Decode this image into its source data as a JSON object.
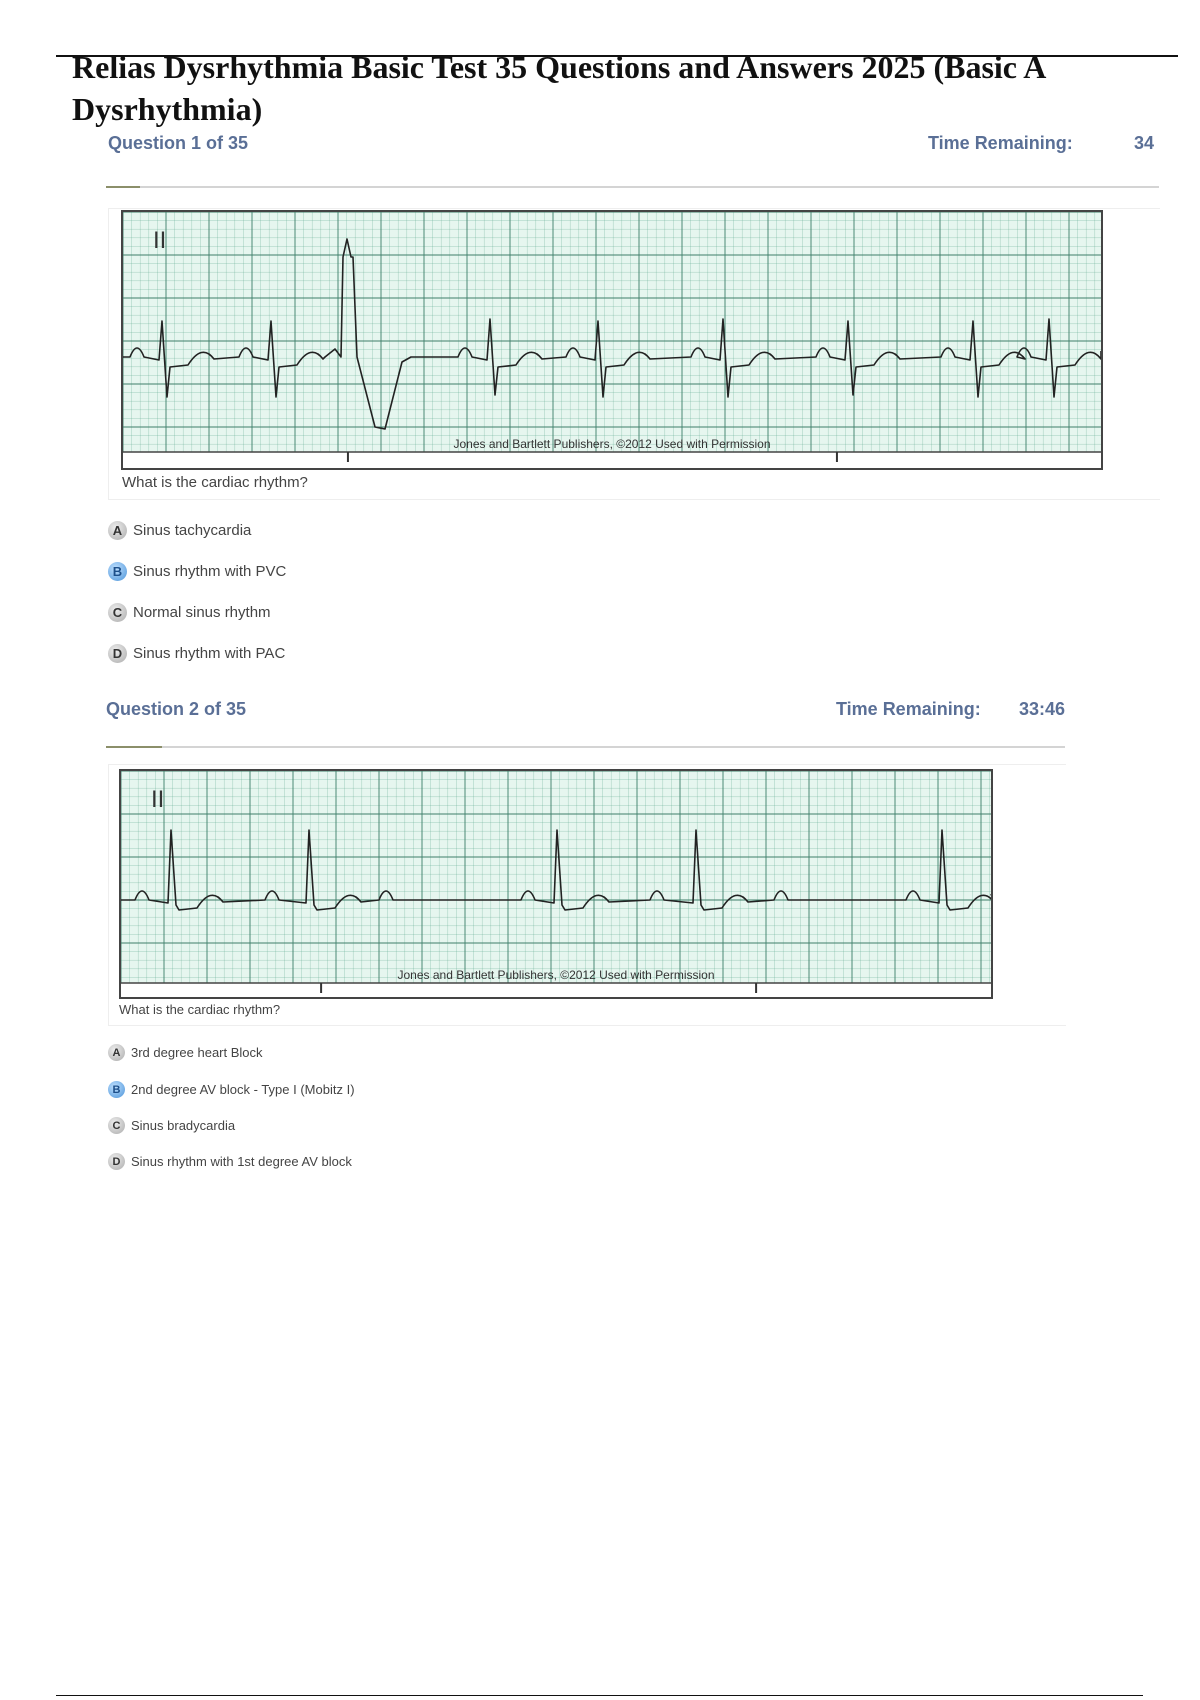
{
  "document": {
    "title": "Relias Dysrhythmia Basic Test 35 Questions and Answers 2025 (Basic A",
    "title_line2": "Dysrhythmia)"
  },
  "questions": [
    {
      "header": "Question 1 of 35",
      "time_label": "Time Remaining:",
      "time_value": "34",
      "lead_label": "II",
      "copyright": "Jones and Bartlett Publishers, ©2012 Used with Permission",
      "prompt": "What is the cardiac rhythm?",
      "options": [
        {
          "letter": "A",
          "text": "Sinus tachycardia",
          "selected": false
        },
        {
          "letter": "B",
          "text": "Sinus rhythm with PVC",
          "selected": true
        },
        {
          "letter": "C",
          "text": "Normal sinus rhythm",
          "selected": false
        },
        {
          "letter": "D",
          "text": "Sinus rhythm with PAC",
          "selected": false
        }
      ]
    },
    {
      "header": "Question 2 of 35",
      "time_label": "Time Remaining:",
      "time_value": "33:46",
      "lead_label": "II",
      "copyright": "Jones and Bartlett Publishers, ©2012 Used with Permission",
      "prompt": "What is the cardiac rhythm?",
      "options": [
        {
          "letter": "A",
          "text": "3rd degree heart Block",
          "selected": false
        },
        {
          "letter": "B",
          "text": "2nd degree AV block - Type I (Mobitz I)",
          "selected": true
        },
        {
          "letter": "C",
          "text": "Sinus bradycardia",
          "selected": false
        },
        {
          "letter": "D",
          "text": "Sinus rhythm with 1st degree AV block",
          "selected": false
        }
      ]
    }
  ],
  "colors": {
    "header_text": "#5a6f96",
    "selected_badge": "#4b93d8",
    "ecg_grid": "#5aa58a",
    "ecg_paper": "#e6f6ef"
  }
}
